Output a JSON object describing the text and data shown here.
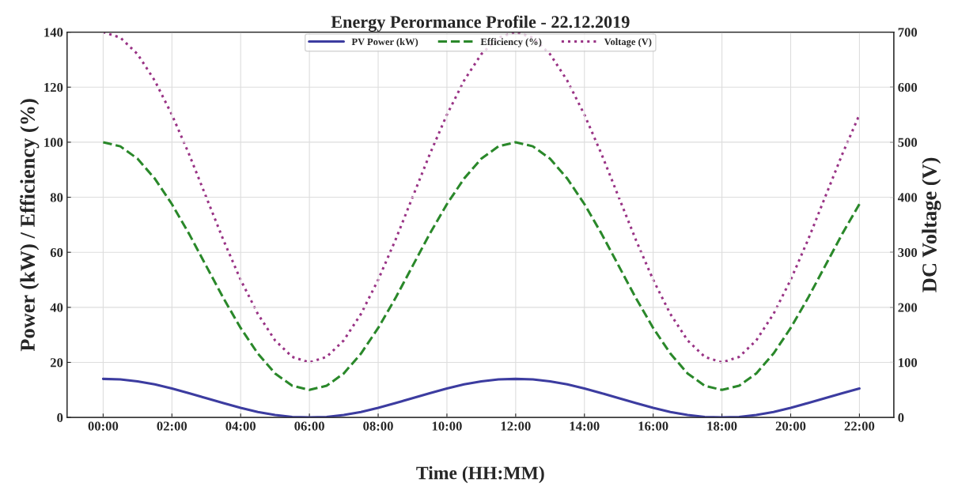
{
  "chart_data": {
    "type": "line",
    "title": "Energy Perormance Profile - 22.12.2019",
    "xlabel": "Time (HH:MM)",
    "ylabel": "Power (kW) / Efficiency (%)",
    "y2label": "DC Voltage (V)",
    "x": [
      0,
      0.5,
      1,
      1.5,
      2,
      2.5,
      3,
      3.5,
      4,
      4.5,
      5,
      5.5,
      6,
      6.5,
      7,
      7.5,
      8,
      8.5,
      9,
      9.5,
      10,
      10.5,
      11,
      11.5,
      12,
      12.5,
      13,
      13.5,
      14,
      14.5,
      15,
      15.5,
      16,
      16.5,
      17,
      17.5,
      18,
      18.5,
      19,
      19.5,
      20,
      20.5,
      21,
      21.5,
      22
    ],
    "xlim": [
      -1.05,
      23.0
    ],
    "xticks": [
      {
        "value": 0,
        "label": "00:00"
      },
      {
        "value": 2,
        "label": "02:00"
      },
      {
        "value": 4,
        "label": "04:00"
      },
      {
        "value": 6,
        "label": "06:00"
      },
      {
        "value": 8,
        "label": "08:00"
      },
      {
        "value": 10,
        "label": "10:00"
      },
      {
        "value": 12,
        "label": "12:00"
      },
      {
        "value": 14,
        "label": "14:00"
      },
      {
        "value": 16,
        "label": "16:00"
      },
      {
        "value": 18,
        "label": "18:00"
      },
      {
        "value": 20,
        "label": "20:00"
      },
      {
        "value": 22,
        "label": "22:00"
      }
    ],
    "ylim": [
      0,
      140
    ],
    "yticks": [
      0,
      20,
      40,
      60,
      80,
      100,
      120,
      140
    ],
    "y2lim": [
      0,
      700
    ],
    "y2ticks": [
      0,
      100,
      200,
      300,
      400,
      500,
      600,
      700
    ],
    "grid": true,
    "legend": "top",
    "series": [
      {
        "name": "PV Power (kW)",
        "color": "#3c3ca0",
        "line_style": "solid",
        "values": [
          14,
          13.8,
          13.1,
          12,
          10.5,
          8.8,
          7,
          5.2,
          3.5,
          2,
          0.9,
          0.2,
          0,
          0.2,
          0.9,
          2,
          3.5,
          5.2,
          7,
          8.8,
          10.5,
          12,
          13.1,
          13.8,
          14,
          13.8,
          13.1,
          12,
          10.5,
          8.8,
          7,
          5.2,
          3.5,
          2,
          0.9,
          0.2,
          0,
          0.2,
          0.9,
          2,
          3.5,
          5.2,
          7,
          8.8,
          10.5
        ]
      },
      {
        "name": "Efficiency (%)",
        "color": "#2a882a",
        "line_style": "dashed",
        "values": [
          100,
          98.5,
          94,
          86.8,
          77.5,
          66.7,
          55,
          43.3,
          32.5,
          23.2,
          16,
          11.5,
          10,
          11.5,
          16,
          23.2,
          32.5,
          43.3,
          55,
          66.7,
          77.5,
          86.8,
          94,
          98.5,
          100,
          98.5,
          94,
          86.8,
          77.5,
          66.7,
          55,
          43.3,
          32.5,
          23.2,
          16,
          11.5,
          10,
          11.5,
          16,
          23.2,
          32.5,
          43.3,
          55,
          66.7,
          77.5
        ]
      },
      {
        "name": "Voltage (V)",
        "color": "#993385",
        "line_style": "dotted",
        "axis": "y2",
        "values": [
          700,
          690,
          660,
          612,
          550,
          478,
          400,
          322,
          250,
          188,
          140,
          110,
          100,
          110,
          140,
          188,
          250,
          322,
          400,
          478,
          550,
          612,
          660,
          690,
          700,
          690,
          660,
          612,
          550,
          478,
          400,
          322,
          250,
          188,
          140,
          110,
          100,
          110,
          140,
          188,
          250,
          322,
          400,
          478,
          550
        ]
      }
    ]
  }
}
